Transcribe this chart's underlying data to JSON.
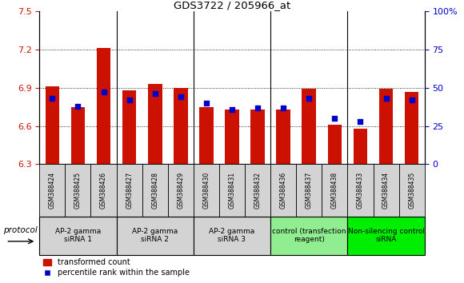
{
  "title": "GDS3722 / 205966_at",
  "samples": [
    "GSM388424",
    "GSM388425",
    "GSM388426",
    "GSM388427",
    "GSM388428",
    "GSM388429",
    "GSM388430",
    "GSM388431",
    "GSM388432",
    "GSM388436",
    "GSM388437",
    "GSM388438",
    "GSM388433",
    "GSM388434",
    "GSM388435"
  ],
  "transformed_count": [
    6.91,
    6.75,
    7.21,
    6.88,
    6.93,
    6.9,
    6.75,
    6.73,
    6.73,
    6.73,
    6.89,
    6.61,
    6.58,
    6.89,
    6.87
  ],
  "percentile_rank": [
    43,
    38,
    47,
    42,
    46,
    44,
    40,
    36,
    37,
    37,
    43,
    30,
    28,
    43,
    42
  ],
  "ylim_left": [
    6.3,
    7.5
  ],
  "ylim_right": [
    0,
    100
  ],
  "yticks_left": [
    6.3,
    6.6,
    6.9,
    7.2,
    7.5
  ],
  "yticks_right": [
    0,
    25,
    50,
    75,
    100
  ],
  "bar_color": "#cc1100",
  "marker_color": "#0000cc",
  "groups": [
    {
      "label": "AP-2 gamma\nsiRNA 1",
      "indices": [
        0,
        1,
        2
      ],
      "color": "#d3d3d3"
    },
    {
      "label": "AP-2 gamma\nsiRNA 2",
      "indices": [
        3,
        4,
        5
      ],
      "color": "#d3d3d3"
    },
    {
      "label": "AP-2 gamma\nsiRNA 3",
      "indices": [
        6,
        7,
        8
      ],
      "color": "#d3d3d3"
    },
    {
      "label": "control (transfection\nreagent)",
      "indices": [
        9,
        10,
        11
      ],
      "color": "#90ee90"
    },
    {
      "label": "Non-silencing control\nsiRNA",
      "indices": [
        12,
        13,
        14
      ],
      "color": "#00ee00"
    }
  ],
  "protocol_label": "protocol",
  "legend_bar_label": "transformed count",
  "legend_marker_label": "percentile rank within the sample",
  "left_tick_color": "#cc1100",
  "right_tick_color": "#0000cc",
  "bar_width": 0.55,
  "base_value": 6.3,
  "group_sep_indices": [
    2.5,
    5.5,
    8.5,
    11.5
  ]
}
